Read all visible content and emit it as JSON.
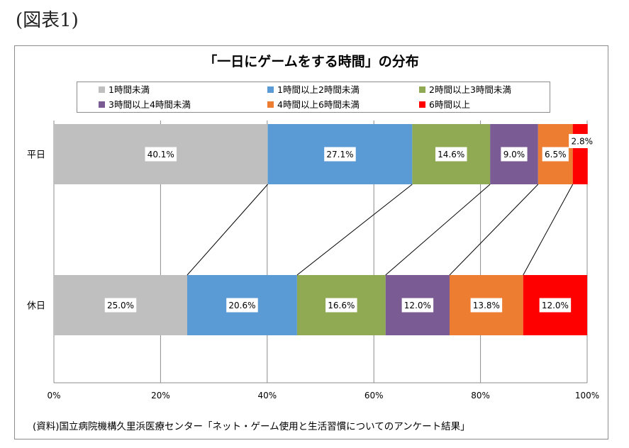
{
  "figure_label": "(図表1)",
  "source": "(資料)国立病院機構久里浜医療センター「ネット・ゲーム使用と生活習慣についてのアンケート結果」",
  "chart_data": {
    "type": "bar",
    "orientation": "horizontal",
    "stacked": "percent",
    "title": "「一日にゲームをする時間」の分布",
    "categories": [
      "平日",
      "休日"
    ],
    "series": [
      {
        "name": "1時間未満",
        "color": "#bfbfbf",
        "values": [
          40.1,
          25.0
        ],
        "labels": [
          "40.1%",
          "25.0%"
        ]
      },
      {
        "name": "1時間以上2時間未満",
        "color": "#5b9bd5",
        "values": [
          27.1,
          20.6
        ],
        "labels": [
          "27.1%",
          "20.6%"
        ]
      },
      {
        "name": "2時間以上3時間未満",
        "color": "#8faa52",
        "values": [
          14.6,
          16.6
        ],
        "labels": [
          "14.6%",
          "16.6%"
        ]
      },
      {
        "name": "3時間以上4時間未満",
        "color": "#7a5b93",
        "values": [
          9.0,
          12.0
        ],
        "labels": [
          "9.0%",
          "12.0%"
        ]
      },
      {
        "name": "4時間以上6時間未満",
        "color": "#ed7d31",
        "values": [
          6.5,
          13.8
        ],
        "labels": [
          "6.5%",
          "13.8%"
        ]
      },
      {
        "name": "6時間以上",
        "color": "#ff0000",
        "values": [
          2.8,
          12.0
        ],
        "labels": [
          "2.8%",
          "12.0%"
        ]
      }
    ],
    "xlim": [
      0,
      100
    ],
    "ticks": [
      "0%",
      "20%",
      "40%",
      "60%",
      "80%",
      "100%"
    ],
    "grid": true,
    "legend_position": "top",
    "series_lines": true
  }
}
